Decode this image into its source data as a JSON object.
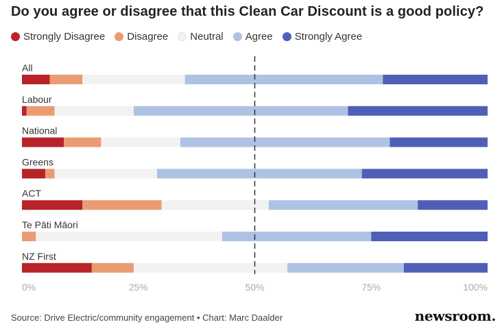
{
  "title": "Do you agree or disagree that this Clean Car Discount is a good policy?",
  "legend": [
    {
      "label": "Strongly Disagree",
      "color": "#b8232a"
    },
    {
      "label": "Disagree",
      "color": "#eb9b72"
    },
    {
      "label": "Neutral",
      "color": "#f2f2f2"
    },
    {
      "label": "Agree",
      "color": "#aec3e3"
    },
    {
      "label": "Strongly Agree",
      "color": "#4f5fb8"
    }
  ],
  "chart_data": {
    "type": "bar",
    "orientation": "horizontal",
    "stacked": true,
    "categories": [
      "All",
      "Labour",
      "National",
      "Greens",
      "ACT",
      "Te Pāti Māori",
      "NZ First"
    ],
    "series": [
      {
        "name": "Strongly Disagree",
        "values": [
          6,
          1,
          9,
          5,
          13,
          0,
          15
        ]
      },
      {
        "name": "Disagree",
        "values": [
          7,
          6,
          8,
          2,
          17,
          3,
          9
        ]
      },
      {
        "name": "Neutral",
        "values": [
          22,
          17,
          17,
          22,
          23,
          40,
          33
        ]
      },
      {
        "name": "Agree",
        "values": [
          42.5,
          46,
          45,
          44,
          32,
          32,
          25
        ]
      },
      {
        "name": "Strongly Agree",
        "values": [
          22.5,
          30,
          21,
          27,
          15,
          25,
          18
        ]
      }
    ],
    "xlim": [
      0,
      100
    ],
    "xticks": [
      "0%",
      "25%",
      "50%",
      "75%",
      "100%"
    ],
    "reference_line": 50,
    "grid": false
  },
  "footer": {
    "source": "Source: Drive Electric/community engagement • Chart: Marc Daalder",
    "brand": "newsroom."
  }
}
